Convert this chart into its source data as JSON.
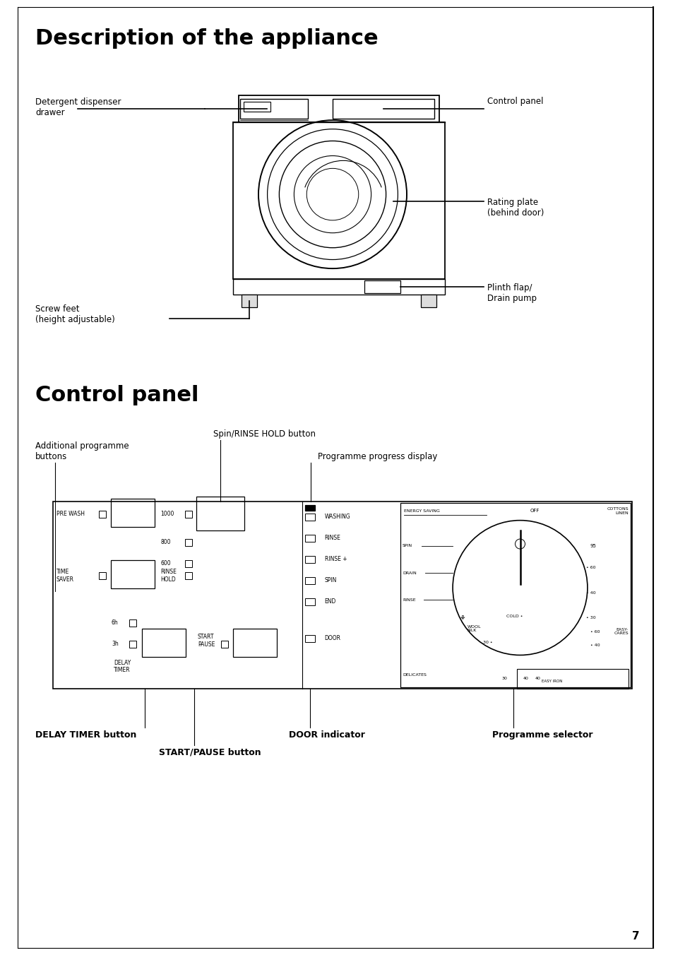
{
  "page_bg": "#ffffff",
  "border_color": "#000000",
  "title1": "Description of the appliance",
  "title2": "Control panel",
  "page_number": "7"
}
